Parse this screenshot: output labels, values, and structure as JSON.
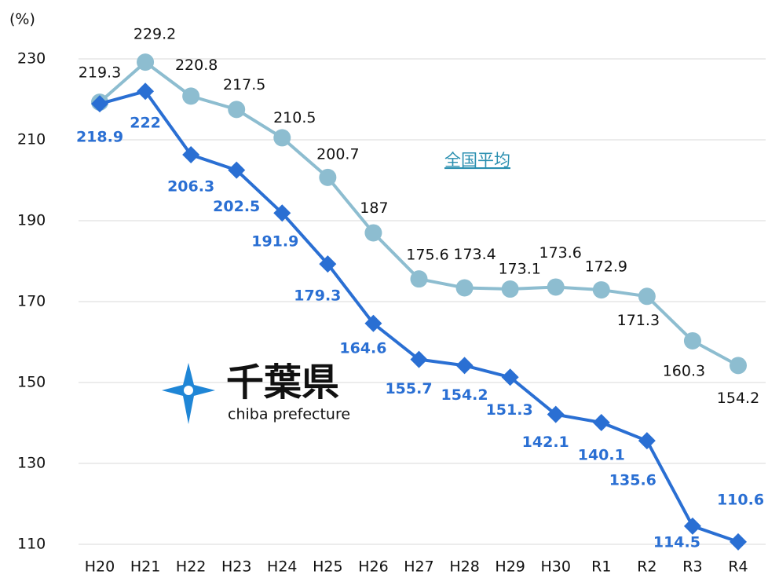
{
  "chart_data": {
    "type": "line",
    "y_label": "(%)",
    "categories": [
      "H20",
      "H21",
      "H22",
      "H23",
      "H24",
      "H25",
      "H26",
      "H27",
      "H28",
      "H29",
      "H30",
      "R1",
      "R2",
      "R3",
      "R4"
    ],
    "series": [
      {
        "name": "全国平均",
        "color": "#8dbdd0",
        "marker": "circle",
        "values": [
          219.3,
          229.2,
          220.8,
          217.5,
          210.5,
          200.7,
          187,
          175.6,
          173.4,
          173.1,
          173.6,
          172.9,
          171.3,
          160.3,
          154.2
        ]
      },
      {
        "name": "千葉県",
        "color": "#2a6fd3",
        "marker": "diamond",
        "values": [
          218.9,
          222,
          206.3,
          202.5,
          191.9,
          179.3,
          164.6,
          155.7,
          154.2,
          151.3,
          142.1,
          140.1,
          135.6,
          114.5,
          110.6
        ]
      }
    ],
    "logo_subtitle": "chiba prefecture",
    "ylim": [
      110,
      230
    ],
    "yticks": [
      110,
      130,
      150,
      170,
      190,
      210,
      230
    ],
    "grid": true
  }
}
